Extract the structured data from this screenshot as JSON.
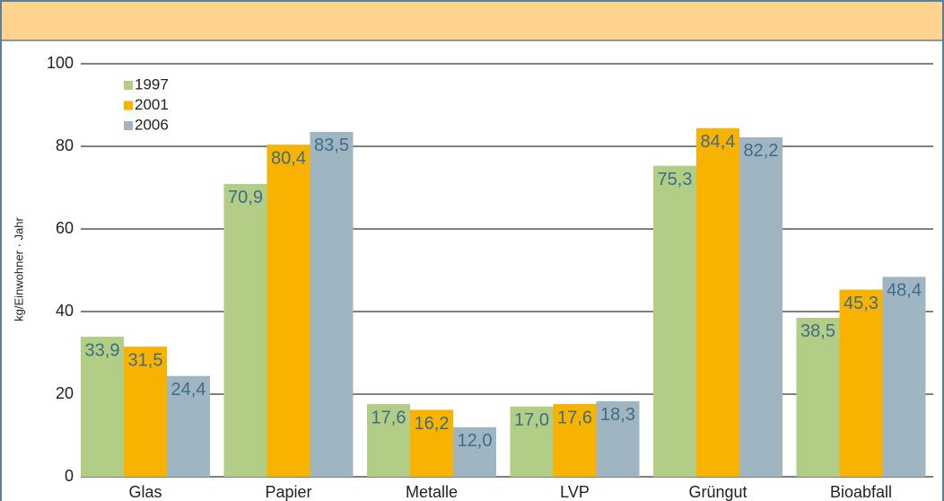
{
  "chart_data": {
    "type": "bar",
    "y_label": "kg/Einwohner · Jahr",
    "categories": [
      "Glas",
      "Papier",
      "Metalle",
      "LVP",
      "Grüngut",
      "Bioabfall"
    ],
    "series": [
      {
        "name": "1997",
        "color": "#b2cd85",
        "values": [
          33.9,
          70.9,
          17.6,
          17.0,
          75.3,
          38.5
        ],
        "value_labels": [
          "33,9",
          "70,9",
          "17,6",
          "17,0",
          "75,3",
          "38,5"
        ]
      },
      {
        "name": "2001",
        "color": "#f8b300",
        "values": [
          31.5,
          80.4,
          16.2,
          17.6,
          84.4,
          45.3
        ],
        "value_labels": [
          "31,5",
          "80,4",
          "16,2",
          "17,6",
          "84,4",
          "45,3"
        ]
      },
      {
        "name": "2006",
        "color": "#a0b5c2",
        "values": [
          24.4,
          83.5,
          12.0,
          18.3,
          82.2,
          48.4
        ],
        "value_labels": [
          "24,4",
          "83,5",
          "12,0",
          "18,3",
          "82,2",
          "48,4"
        ]
      }
    ],
    "ylim": [
      0,
      100
    ],
    "yticks": [
      0,
      20,
      40,
      60,
      80,
      100
    ],
    "grid": true,
    "legend": "top-left"
  }
}
